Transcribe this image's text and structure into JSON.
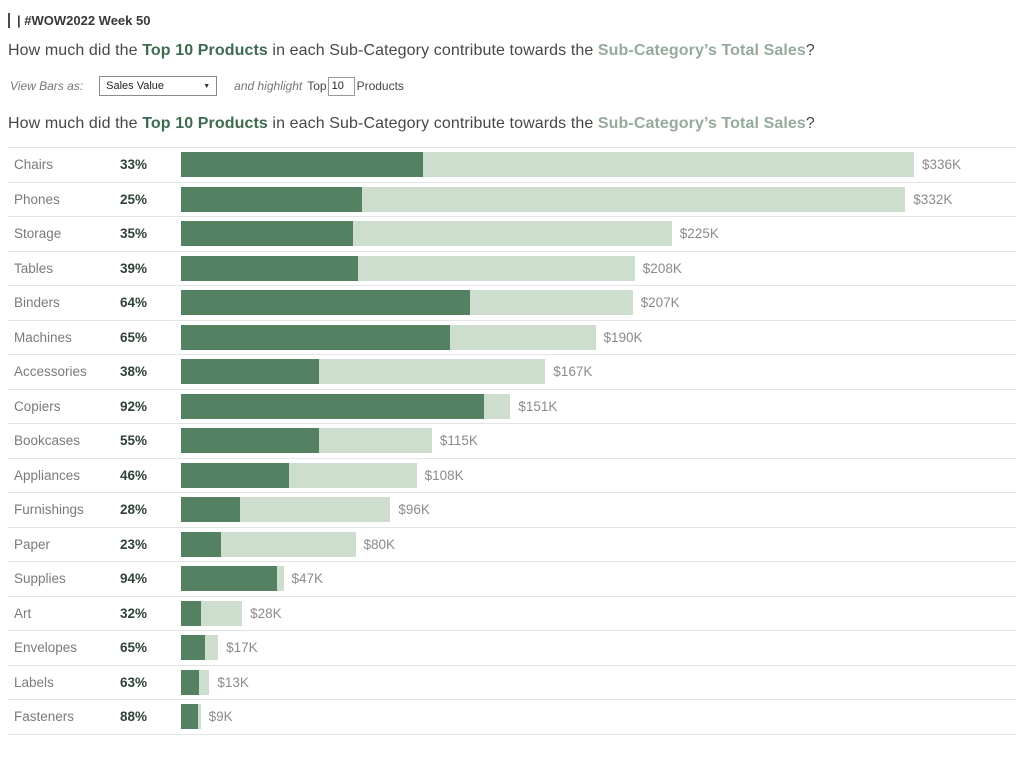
{
  "header": {
    "tag": "| #WOW2022 Week 50"
  },
  "title": {
    "t1": "How much did the ",
    "t2": "Top 10 Products",
    "t3": " in each Sub-Category contribute towards the ",
    "t4": "Sub-Category’s Total Sales",
    "t5": "?"
  },
  "controls": {
    "view_bars_label": "View Bars as:",
    "dropdown_value": "Sales Value",
    "highlight_label": "and highlight",
    "top_label": "Top",
    "top_value": "10",
    "products_label": "Products"
  },
  "chart_data": {
    "type": "bar",
    "subtype": "overlapped-horizontal-bars",
    "title": "How much did the Top 10 Products in each Sub-Category contribute towards the Sub-Category’s Total Sales?",
    "unit": "USD thousands",
    "max_value_k": 336,
    "legend_position": "none",
    "grid": false,
    "colors": {
      "top10": "#558163",
      "total": "#cdddce"
    },
    "series_meaning": [
      {
        "name": "Top 10 Products share of Sub-Category Sales",
        "color": "#558163"
      },
      {
        "name": "Sub-Category Total Sales",
        "color": "#cdddce"
      }
    ],
    "rows": [
      {
        "label": "Chairs",
        "pct": 33,
        "total_k": 336,
        "total_label": "$336K"
      },
      {
        "label": "Phones",
        "pct": 25,
        "total_k": 332,
        "total_label": "$332K"
      },
      {
        "label": "Storage",
        "pct": 35,
        "total_k": 225,
        "total_label": "$225K"
      },
      {
        "label": "Tables",
        "pct": 39,
        "total_k": 208,
        "total_label": "$208K"
      },
      {
        "label": "Binders",
        "pct": 64,
        "total_k": 207,
        "total_label": "$207K"
      },
      {
        "label": "Machines",
        "pct": 65,
        "total_k": 190,
        "total_label": "$190K"
      },
      {
        "label": "Accessories",
        "pct": 38,
        "total_k": 167,
        "total_label": "$167K"
      },
      {
        "label": "Copiers",
        "pct": 92,
        "total_k": 151,
        "total_label": "$151K"
      },
      {
        "label": "Bookcases",
        "pct": 55,
        "total_k": 115,
        "total_label": "$115K"
      },
      {
        "label": "Appliances",
        "pct": 46,
        "total_k": 108,
        "total_label": "$108K"
      },
      {
        "label": "Furnishings",
        "pct": 28,
        "total_k": 96,
        "total_label": "$96K"
      },
      {
        "label": "Paper",
        "pct": 23,
        "total_k": 80,
        "total_label": "$80K"
      },
      {
        "label": "Supplies",
        "pct": 94,
        "total_k": 47,
        "total_label": "$47K"
      },
      {
        "label": "Art",
        "pct": 32,
        "total_k": 28,
        "total_label": "$28K"
      },
      {
        "label": "Envelopes",
        "pct": 65,
        "total_k": 17,
        "total_label": "$17K"
      },
      {
        "label": "Labels",
        "pct": 63,
        "total_k": 13,
        "total_label": "$13K"
      },
      {
        "label": "Fasteners",
        "pct": 88,
        "total_k": 9,
        "total_label": "$9K"
      }
    ]
  }
}
